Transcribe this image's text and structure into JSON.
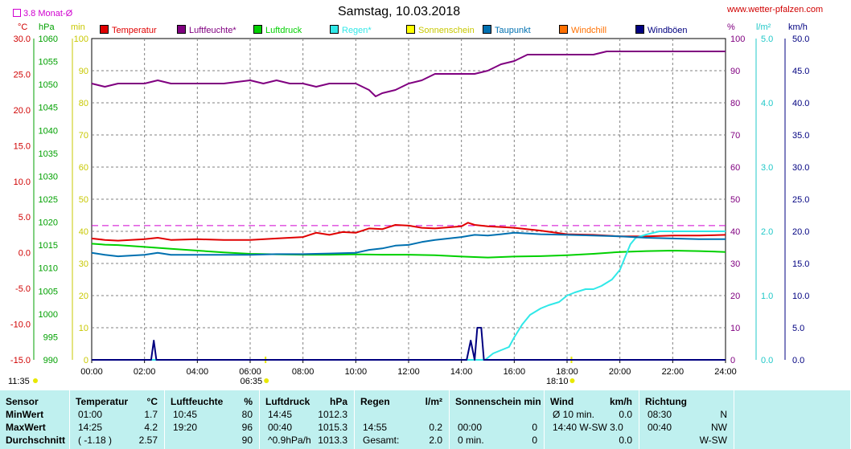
{
  "header": {
    "date": "Samstag, 10.03.2018",
    "website": "www.wetter-pfalzen.com",
    "avg_label": "3.8 Monat-Ø"
  },
  "axes": {
    "celsius_unit": "°C",
    "hpa_unit": "hPa",
    "min_unit": "min",
    "pct_unit": "%",
    "rain_unit": "l/m²",
    "wind_unit": "km/h",
    "celsius_ticks": [
      "30.0",
      "25.0",
      "20.0",
      "15.0",
      "10.0",
      "5.0",
      "0.0",
      "-5.0",
      "-10.0",
      "-15.0"
    ],
    "hpa_ticks": [
      "1060",
      "1055",
      "1050",
      "1045",
      "1040",
      "1035",
      "1030",
      "1025",
      "1020",
      "1015",
      "1010",
      "1005",
      "1000",
      "995",
      "990"
    ],
    "min_ticks": [
      "100",
      "90",
      "80",
      "70",
      "60",
      "50",
      "40",
      "30",
      "20",
      "10",
      "0"
    ],
    "pct_ticks": [
      "100",
      "90",
      "80",
      "70",
      "60",
      "50",
      "40",
      "30",
      "20",
      "10",
      "0"
    ],
    "rain_ticks": [
      "5.0",
      "4.0",
      "3.0",
      "2.0",
      "1.0",
      "0.0"
    ],
    "wind_ticks": [
      "50.0",
      "45.0",
      "40.0",
      "35.0",
      "30.0",
      "25.0",
      "20.0",
      "15.0",
      "10.0",
      "5.0",
      "0.0"
    ],
    "x_ticks": [
      "00:00",
      "02:00",
      "04:00",
      "06:00",
      "08:00",
      "10:00",
      "12:00",
      "14:00",
      "16:00",
      "18:00",
      "20:00",
      "22:00",
      "24:00"
    ],
    "sunrise": "06:35",
    "sunset": "18:10",
    "daylight": "11:35"
  },
  "legend": [
    {
      "label": "Temperatur",
      "color": "#e00000"
    },
    {
      "label": "Luftfeuchte*",
      "color": "#800080"
    },
    {
      "label": "Luftdruck",
      "color": "#00d000"
    },
    {
      "label": "Regen*",
      "color": "#30e8e8"
    },
    {
      "label": "Sonnenschein",
      "color": "#ffff00"
    },
    {
      "label": "Taupunkt",
      "color": "#0070b0"
    },
    {
      "label": "Windchill",
      "color": "#ff7000"
    },
    {
      "label": "Windböen",
      "color": "#000080"
    }
  ],
  "colors": {
    "temp_axis": "#d00000",
    "hpa_axis": "#00a000",
    "min_axis": "#c8c800",
    "pct_axis": "#800080",
    "rain_axis": "#20c8c8",
    "wind_axis": "#000080",
    "avg_line": "#d000d0"
  },
  "chart_data": {
    "type": "line",
    "x_unit": "hours",
    "xlim": [
      0,
      24
    ],
    "monthly_avg_temp": 3.8,
    "series": [
      {
        "name": "Temperatur",
        "unit": "°C",
        "ylim": [
          -15,
          30
        ],
        "x": [
          0,
          0.5,
          1,
          2,
          2.5,
          3,
          4,
          5,
          6,
          7,
          8,
          8.5,
          9,
          9.5,
          10,
          10.5,
          11,
          11.5,
          12,
          12.5,
          13,
          14,
          14.25,
          14.5,
          15,
          16,
          17,
          18,
          19,
          20,
          21,
          22,
          23,
          24
        ],
        "y": [
          2.0,
          1.8,
          1.7,
          1.9,
          2.1,
          1.8,
          1.9,
          1.8,
          1.8,
          2.0,
          2.2,
          2.8,
          2.5,
          2.9,
          2.8,
          3.4,
          3.3,
          3.9,
          3.8,
          3.5,
          3.4,
          3.7,
          4.2,
          3.9,
          3.7,
          3.5,
          3.1,
          2.6,
          2.5,
          2.3,
          2.3,
          2.4,
          2.4,
          2.5
        ]
      },
      {
        "name": "Luftfeuchte*",
        "unit": "%",
        "ylim": [
          0,
          100
        ],
        "x": [
          0,
          0.5,
          1,
          1.5,
          2,
          2.5,
          3,
          4,
          5,
          6,
          6.5,
          7,
          7.5,
          8,
          8.5,
          9,
          10,
          10.5,
          10.75,
          11,
          11.5,
          12,
          12.5,
          13,
          14,
          14.5,
          15,
          15.5,
          16,
          16.5,
          17,
          18,
          19,
          19.5,
          20,
          21,
          22,
          23,
          24
        ],
        "y": [
          86,
          85,
          86,
          86,
          86,
          87,
          86,
          86,
          86,
          87,
          86,
          87,
          86,
          86,
          85,
          86,
          86,
          84,
          82,
          83,
          84,
          86,
          87,
          89,
          89,
          89,
          90,
          92,
          93,
          95,
          95,
          95,
          95,
          96,
          96,
          96,
          96,
          96,
          96
        ]
      },
      {
        "name": "Luftdruck",
        "unit": "hPa",
        "ylim": [
          990,
          1060
        ],
        "x": [
          0,
          0.5,
          1,
          1.5,
          2,
          3,
          4,
          5,
          6,
          7,
          8,
          9,
          10,
          11,
          12,
          13,
          14,
          15,
          16,
          17,
          18,
          19,
          20,
          21,
          22,
          23,
          24
        ],
        "y": [
          1015.3,
          1015.1,
          1015.0,
          1014.8,
          1014.6,
          1014.2,
          1013.8,
          1013.4,
          1013.1,
          1013.0,
          1012.9,
          1012.9,
          1013.0,
          1012.9,
          1012.9,
          1012.8,
          1012.5,
          1012.3,
          1012.5,
          1012.6,
          1012.8,
          1013.1,
          1013.5,
          1013.7,
          1013.8,
          1013.7,
          1013.5
        ]
      },
      {
        "name": "Regen*",
        "unit": "l/m²",
        "ylim": [
          0,
          5
        ],
        "x": [
          0,
          14.9,
          15.2,
          15.5,
          15.8,
          16,
          16.3,
          16.6,
          17,
          17.3,
          17.7,
          18,
          18.3,
          18.7,
          19,
          19.3,
          19.7,
          20,
          20.2,
          20.4,
          20.6,
          21,
          21.5,
          22,
          23,
          24
        ],
        "y": [
          0,
          0,
          0.1,
          0.15,
          0.2,
          0.35,
          0.55,
          0.7,
          0.8,
          0.85,
          0.9,
          1.0,
          1.05,
          1.1,
          1.1,
          1.15,
          1.25,
          1.4,
          1.6,
          1.8,
          1.9,
          1.95,
          2.0,
          2.0,
          2.0,
          2.0
        ]
      },
      {
        "name": "Taupunkt",
        "unit": "°C",
        "ylim": [
          -15,
          30
        ],
        "x": [
          0,
          0.5,
          1,
          2,
          2.5,
          3,
          4,
          5,
          6,
          7,
          8,
          9,
          10,
          10.5,
          11,
          11.5,
          12,
          12.5,
          13,
          14,
          14.5,
          15,
          15.5,
          16,
          17,
          18,
          19,
          20,
          21,
          22,
          23,
          24
        ],
        "y": [
          0.0,
          -0.3,
          -0.5,
          -0.3,
          0.0,
          -0.3,
          -0.3,
          -0.3,
          -0.3,
          -0.2,
          -0.2,
          -0.1,
          0.0,
          0.4,
          0.6,
          1.0,
          1.1,
          1.5,
          1.8,
          2.2,
          2.5,
          2.4,
          2.6,
          2.8,
          2.6,
          2.5,
          2.4,
          2.3,
          2.1,
          2.0,
          1.9,
          1.9
        ]
      },
      {
        "name": "Windböen",
        "unit": "km/h",
        "ylim": [
          0,
          50
        ],
        "x": [
          0,
          2.25,
          2.35,
          2.45,
          14.2,
          14.35,
          14.5,
          14.6,
          14.75,
          14.85,
          24
        ],
        "y": [
          0,
          0,
          3,
          0,
          0,
          3,
          0,
          5,
          5,
          0,
          0
        ]
      }
    ]
  },
  "summary": {
    "columns": [
      {
        "title": "Sensor",
        "unit": "",
        "rows": [
          "MinWert",
          "MaxWert",
          "Durchschnitt"
        ]
      },
      {
        "title": "Temperatur",
        "unit": "°C",
        "rows": [
          [
            "01:00",
            "1.7"
          ],
          [
            "14:25",
            "4.2"
          ],
          [
            "( -1.18 )",
            "2.57"
          ]
        ]
      },
      {
        "title": "Luftfeuchte",
        "unit": "%",
        "rows": [
          [
            "10:45",
            "80"
          ],
          [
            "19:20",
            "96"
          ],
          [
            "",
            "90"
          ]
        ]
      },
      {
        "title": "Luftdruck",
        "unit": "hPa",
        "rows": [
          [
            "14:45",
            "1012.3"
          ],
          [
            "00:40",
            "1015.3"
          ],
          [
            "^0.9hPa/h",
            "1013.3"
          ]
        ]
      },
      {
        "title": "Regen",
        "unit": "l/m²",
        "rows": [
          [
            "",
            ""
          ],
          [
            "14:55",
            "0.2"
          ],
          [
            "Gesamt:",
            "2.0"
          ]
        ]
      },
      {
        "title": "Sonnenschein min",
        "unit": "",
        "rows": [
          [
            "",
            ""
          ],
          [
            "00:00",
            "0"
          ],
          [
            "0 min.",
            "0"
          ]
        ]
      },
      {
        "title": "Wind",
        "unit": "km/h",
        "rows": [
          [
            "Ø 10 min.",
            "0.0"
          ],
          [
            "14:40  W-SW 3.0",
            ""
          ],
          [
            "",
            "0.0"
          ]
        ]
      },
      {
        "title": "Richtung",
        "unit": "",
        "rows": [
          [
            "08:30",
            "N"
          ],
          [
            "00:40",
            "NW"
          ],
          [
            "",
            "W-SW"
          ]
        ]
      }
    ]
  }
}
